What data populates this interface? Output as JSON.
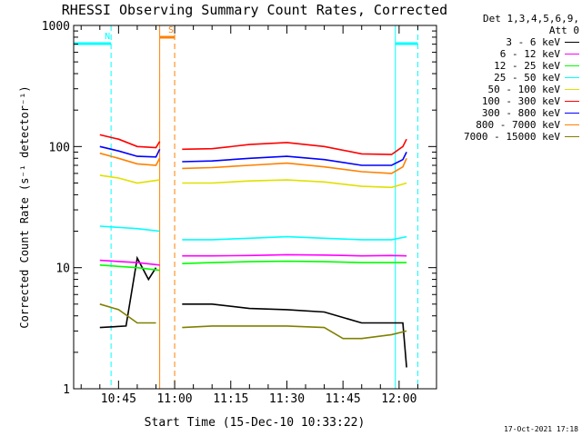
{
  "chart_data": {
    "type": "line",
    "title": "RHESSI Observing Summary Count Rates, Corrected",
    "xlabel": "Start Time (15-Dec-10 10:33:22)",
    "ylabel": "Corrected Count Rate (s⁻¹ detector⁻¹)",
    "yscale": "log",
    "ylim": [
      1,
      1000
    ],
    "xlim": [
      "10:33",
      "12:10"
    ],
    "yticks": [
      "1",
      "10",
      "100",
      "1000"
    ],
    "xticks": [
      "10:45",
      "11:00",
      "11:15",
      "11:30",
      "11:45",
      "12:00"
    ],
    "grid": false,
    "legend_position": "right",
    "legend_header": "Det 1,3,4,5,6,9,",
    "legend_subheader": "Att 0",
    "data_gap": [
      "10:57",
      "11:02"
    ],
    "series": [
      {
        "name": "3 - 6 keV",
        "color": "#000000",
        "x": [
          "10:40",
          "10:47",
          "10:50",
          "10:53",
          "10:55",
          "11:02",
          "11:10",
          "11:20",
          "11:30",
          "11:40",
          "11:50",
          "11:58",
          "12:01",
          "12:02"
        ],
        "values": [
          3.2,
          3.3,
          12,
          8,
          10,
          5,
          5,
          4.6,
          4.5,
          4.3,
          3.5,
          3.5,
          3.5,
          1.5
        ]
      },
      {
        "name": "6 - 12 keV",
        "color": "#ff00ff",
        "x": [
          "10:40",
          "10:50",
          "10:56",
          "11:02",
          "11:10",
          "11:20",
          "11:30",
          "11:40",
          "11:50",
          "11:58",
          "12:02"
        ],
        "values": [
          11.5,
          11,
          10.5,
          12.5,
          12.5,
          12.6,
          12.8,
          12.7,
          12.5,
          12.6,
          12.5
        ]
      },
      {
        "name": "12 - 25 keV",
        "color": "#00ff00",
        "x": [
          "10:40",
          "10:50",
          "10:56",
          "11:02",
          "11:10",
          "11:20",
          "11:30",
          "11:40",
          "11:50",
          "11:58",
          "12:02"
        ],
        "values": [
          10.5,
          10,
          9.5,
          10.8,
          11,
          11.2,
          11.3,
          11.2,
          11,
          11,
          11
        ]
      },
      {
        "name": "25 - 50 keV",
        "color": "#00ffff",
        "x": [
          "10:40",
          "10:50",
          "10:56",
          "11:02",
          "11:10",
          "11:20",
          "11:30",
          "11:40",
          "11:50",
          "11:58",
          "12:02"
        ],
        "values": [
          22,
          21,
          20,
          17,
          17,
          17.5,
          18,
          17.5,
          17,
          17,
          18
        ]
      },
      {
        "name": "50 - 100 keV",
        "color": "#e0e000",
        "x": [
          "10:40",
          "10:45",
          "10:50",
          "10:56",
          "11:02",
          "11:10",
          "11:20",
          "11:30",
          "11:40",
          "11:50",
          "11:58",
          "12:02"
        ],
        "values": [
          58,
          55,
          50,
          53,
          50,
          50,
          52,
          53,
          51,
          47,
          46,
          50
        ]
      },
      {
        "name": "100 - 300 keV",
        "color": "#ff0000",
        "x": [
          "10:40",
          "10:45",
          "10:50",
          "10:55",
          "10:56",
          "11:02",
          "11:10",
          "11:20",
          "11:30",
          "11:40",
          "11:50",
          "11:58",
          "12:01",
          "12:02"
        ],
        "values": [
          125,
          115,
          100,
          98,
          110,
          95,
          96,
          104,
          108,
          100,
          87,
          86,
          100,
          115
        ]
      },
      {
        "name": "300 - 800 keV",
        "color": "#0000ff",
        "x": [
          "10:40",
          "10:45",
          "10:50",
          "10:55",
          "10:56",
          "11:02",
          "11:10",
          "11:20",
          "11:30",
          "11:40",
          "11:50",
          "11:58",
          "12:01",
          "12:02"
        ],
        "values": [
          100,
          92,
          83,
          82,
          95,
          75,
          76,
          80,
          83,
          78,
          70,
          70,
          78,
          90
        ]
      },
      {
        "name": "800 - 7000 keV",
        "color": "#ff8000",
        "x": [
          "10:40",
          "10:45",
          "10:50",
          "10:55",
          "10:56",
          "11:02",
          "11:10",
          "11:20",
          "11:30",
          "11:40",
          "11:50",
          "11:58",
          "12:01",
          "12:02"
        ],
        "values": [
          88,
          80,
          72,
          70,
          80,
          66,
          67,
          70,
          73,
          68,
          62,
          60,
          68,
          80
        ]
      },
      {
        "name": "7000 - 15000 keV",
        "color": "#808000",
        "x": [
          "10:40",
          "10:45",
          "10:50",
          "10:55",
          "11:02",
          "11:10",
          "11:20",
          "11:30",
          "11:40",
          "11:45",
          "11:50",
          "11:58",
          "12:02"
        ],
        "values": [
          5,
          4.5,
          3.5,
          3.5,
          3.2,
          3.3,
          3.3,
          3.3,
          3.2,
          2.6,
          2.6,
          2.8,
          3.0
        ]
      }
    ],
    "annotations": [
      {
        "label": "N",
        "color": "#00ffff",
        "x_start": "10:33",
        "x_end": "10:43"
      },
      {
        "label": "",
        "color": "#00ffff",
        "x_start": "11:59",
        "x_end": "12:05"
      },
      {
        "label": "S",
        "color": "#ff8000",
        "x_start": "10:56",
        "x_end": "11:00"
      }
    ]
  },
  "footer": {
    "timestamp": "17-Oct-2021 17:18"
  }
}
